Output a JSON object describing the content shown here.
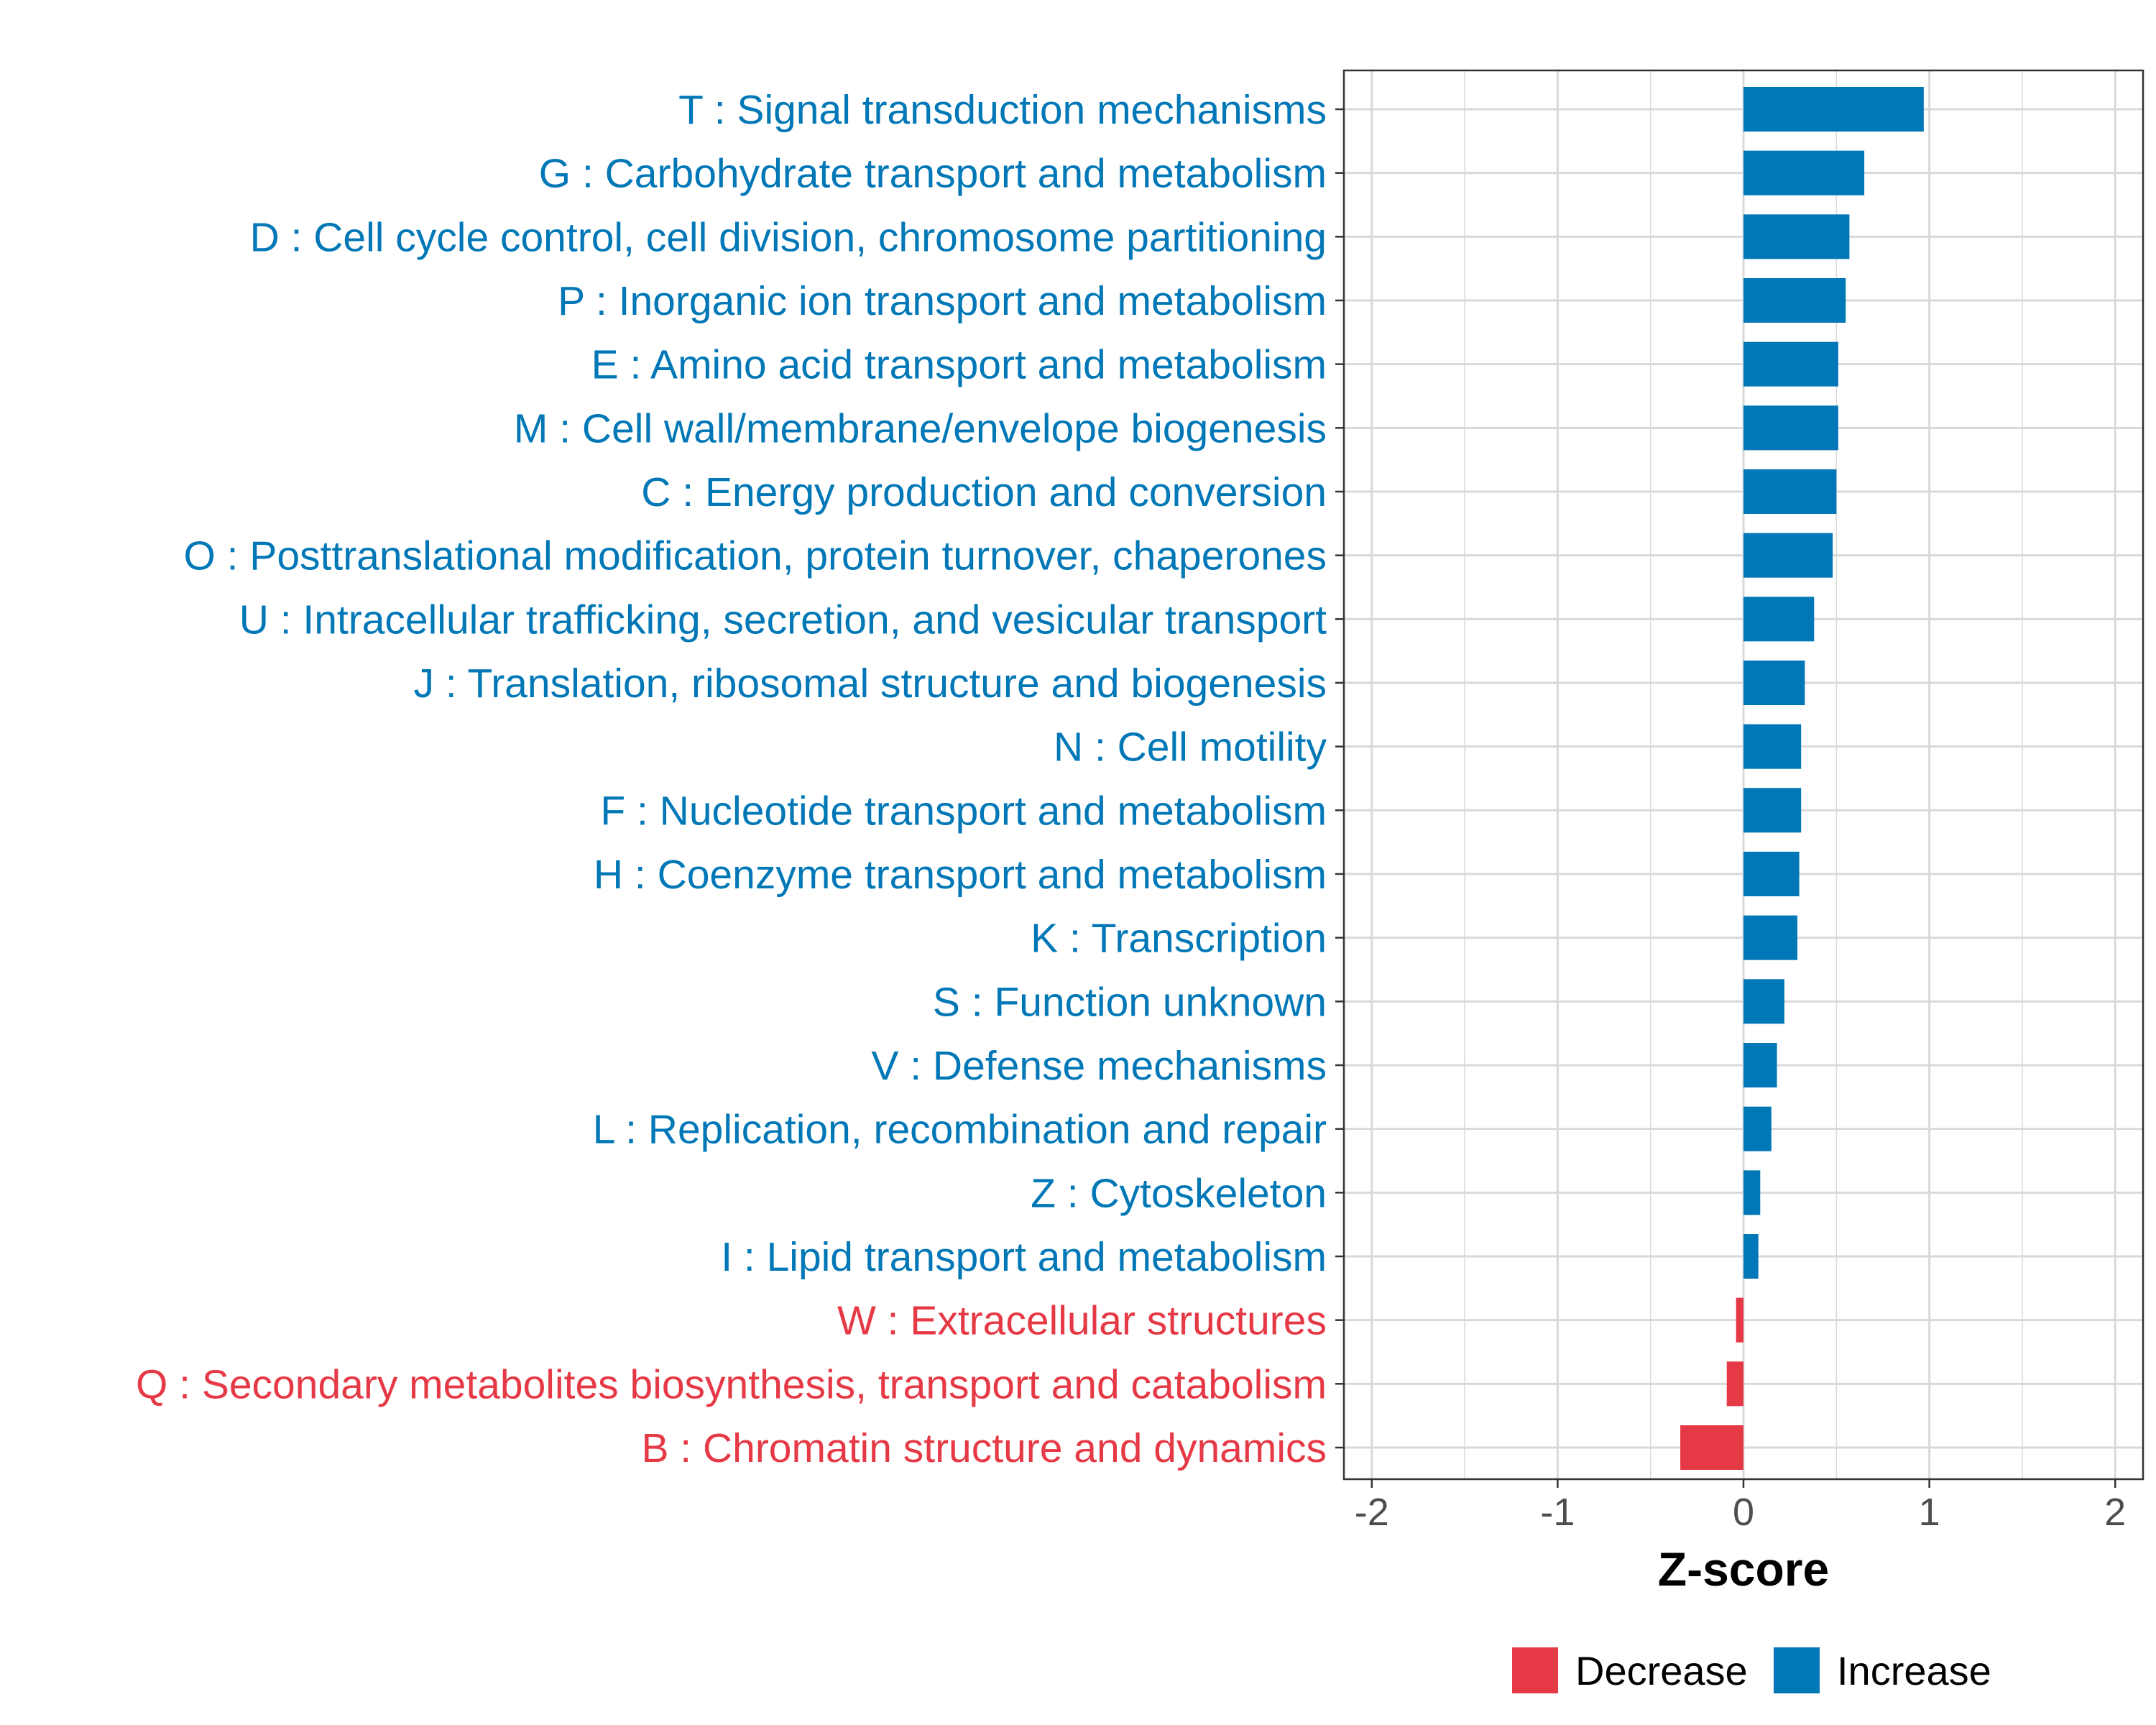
{
  "chart_data": {
    "type": "bar",
    "orientation": "horizontal",
    "xlabel": "Z-score",
    "xlim": [
      -2.15,
      2.15
    ],
    "xticks": [
      -2,
      -1,
      0,
      1,
      2
    ],
    "xtick_labels": [
      "-2",
      "-1",
      "0",
      "1",
      "2"
    ],
    "grid": true,
    "legend_position": "bottom",
    "colors": {
      "Decrease": "#e63946",
      "Increase": "#0077b6"
    },
    "legend": [
      {
        "label": "Decrease",
        "color": "#e63946"
      },
      {
        "label": "Increase",
        "color": "#0077b6"
      }
    ],
    "categories": [
      "T : Signal transduction mechanisms",
      "G : Carbohydrate transport and metabolism",
      "D : Cell cycle control, cell division, chromosome partitioning",
      "P : Inorganic ion transport and metabolism",
      "E : Amino acid transport and metabolism",
      "M : Cell wall/membrane/envelope biogenesis",
      "C : Energy production and conversion",
      "O : Posttranslational modification, protein turnover, chaperones",
      "U : Intracellular trafficking, secretion, and vesicular transport",
      "J : Translation, ribosomal structure and biogenesis",
      "N : Cell motility",
      "F : Nucleotide transport and metabolism",
      "H : Coenzyme transport and metabolism",
      "K : Transcription",
      "S : Function unknown",
      "V : Defense mechanisms",
      "L : Replication, recombination and repair",
      "Z : Cytoskeleton",
      "I : Lipid transport and metabolism",
      "W : Extracellular structures",
      "Q : Secondary metabolites biosynthesis, transport and catabolism",
      "B : Chromatin structure and dynamics"
    ],
    "values": [
      0.97,
      0.65,
      0.57,
      0.55,
      0.51,
      0.51,
      0.5,
      0.48,
      0.38,
      0.33,
      0.31,
      0.31,
      0.3,
      0.29,
      0.22,
      0.18,
      0.15,
      0.09,
      0.08,
      -0.04,
      -0.09,
      -0.34
    ],
    "groups": [
      "Increase",
      "Increase",
      "Increase",
      "Increase",
      "Increase",
      "Increase",
      "Increase",
      "Increase",
      "Increase",
      "Increase",
      "Increase",
      "Increase",
      "Increase",
      "Increase",
      "Increase",
      "Increase",
      "Increase",
      "Increase",
      "Increase",
      "Decrease",
      "Decrease",
      "Decrease"
    ]
  }
}
